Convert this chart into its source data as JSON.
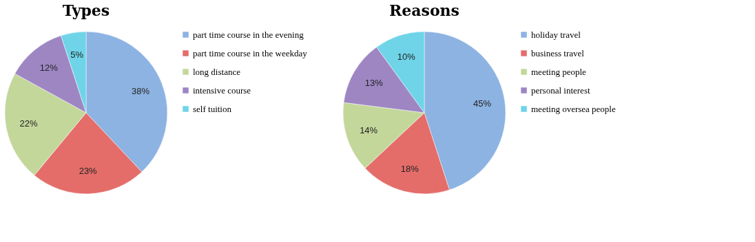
{
  "chart_data": [
    {
      "type": "pie",
      "title": "Types",
      "categories": [
        "part time course in the evening",
        "part time course in the weekday",
        "long distance",
        "intensive course",
        "self tuition"
      ],
      "values": [
        38,
        23,
        22,
        12,
        5
      ],
      "value_labels": [
        "38%",
        "23%",
        "22%",
        "12%",
        "5%"
      ],
      "colors": [
        "#8db3e2",
        "#e46d6a",
        "#c4d79b",
        "#9e86c3",
        "#6fd4e8"
      ],
      "legend": "right"
    },
    {
      "type": "pie",
      "title": "Reasons",
      "categories": [
        "holiday travel",
        "business travel",
        "meeting people",
        "personal interest",
        "meeting oversea people"
      ],
      "values": [
        45,
        18,
        14,
        13,
        10
      ],
      "value_labels": [
        "45%",
        "18%",
        "14%",
        "13%",
        "10%"
      ],
      "colors": [
        "#8db3e2",
        "#e46d6a",
        "#c4d79b",
        "#9e86c3",
        "#6fd4e8"
      ],
      "legend": "right"
    }
  ]
}
